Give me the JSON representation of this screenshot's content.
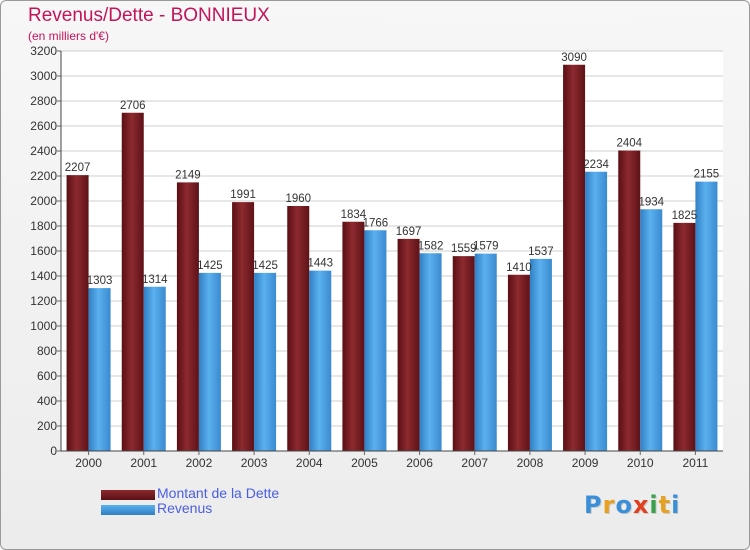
{
  "title": "Revenus/Dette - BONNIEUX",
  "subtitle": "(en milliers d'€)",
  "chart_data": {
    "type": "bar",
    "categories": [
      "2000",
      "2001",
      "2002",
      "2003",
      "2004",
      "2005",
      "2006",
      "2007",
      "2008",
      "2009",
      "2010",
      "2011"
    ],
    "series": [
      {
        "name": "Montant de la Dette",
        "color": "#7a1d22",
        "values": [
          2207,
          2706,
          2149,
          1991,
          1960,
          1834,
          1697,
          1559,
          1410,
          3090,
          2404,
          1825
        ]
      },
      {
        "name": "Revenus",
        "color": "#4a9ee0",
        "values": [
          1303,
          1314,
          1425,
          1425,
          1443,
          1766,
          1582,
          1579,
          1537,
          2234,
          1934,
          2155
        ]
      }
    ],
    "ylim": [
      0,
      3200
    ],
    "yticks": [
      0,
      200,
      400,
      600,
      800,
      1000,
      1200,
      1400,
      1600,
      1800,
      2000,
      2200,
      2400,
      2600,
      2800,
      3000,
      3200
    ],
    "grid": true,
    "legend": "bottom-left"
  },
  "legend": {
    "debt_label": "Montant de la Dette",
    "revenue_label": "Revenus"
  },
  "logo": {
    "letters": [
      "P",
      "r",
      "o",
      "x",
      "i",
      "t",
      "i"
    ],
    "colors": [
      "#3a8fd8",
      "#e8a020",
      "#3a8fd8",
      "#e04020",
      "#3aa04a",
      "#e8a020",
      "#3a8fd8"
    ]
  }
}
